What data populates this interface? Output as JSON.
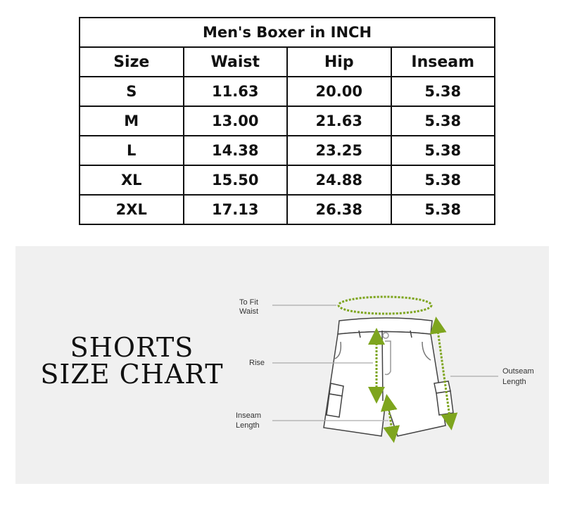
{
  "table": {
    "title": "Men's Boxer in INCH",
    "headers": [
      "Size",
      "Waist",
      "Hip",
      "Inseam"
    ],
    "rows": [
      [
        "S",
        "11.63",
        "20.00",
        "5.38"
      ],
      [
        "M",
        "13.00",
        "21.63",
        "5.38"
      ],
      [
        "L",
        "14.38",
        "23.25",
        "5.38"
      ],
      [
        "XL",
        "15.50",
        "24.88",
        "5.38"
      ],
      [
        "2XL",
        "17.13",
        "26.38",
        "5.38"
      ]
    ]
  },
  "chart": {
    "heading_line1": "SHORTS",
    "heading_line2": "SIZE CHART",
    "labels": {
      "waist_1": "To Fit",
      "waist_2": "Waist",
      "rise": "Rise",
      "inseam_1": "Inseam",
      "inseam_2": "Length",
      "outseam_1": "Outseam",
      "outseam_2": "Length"
    },
    "accent_color": "#7ea51e",
    "panel_color": "#f0f0f0"
  }
}
